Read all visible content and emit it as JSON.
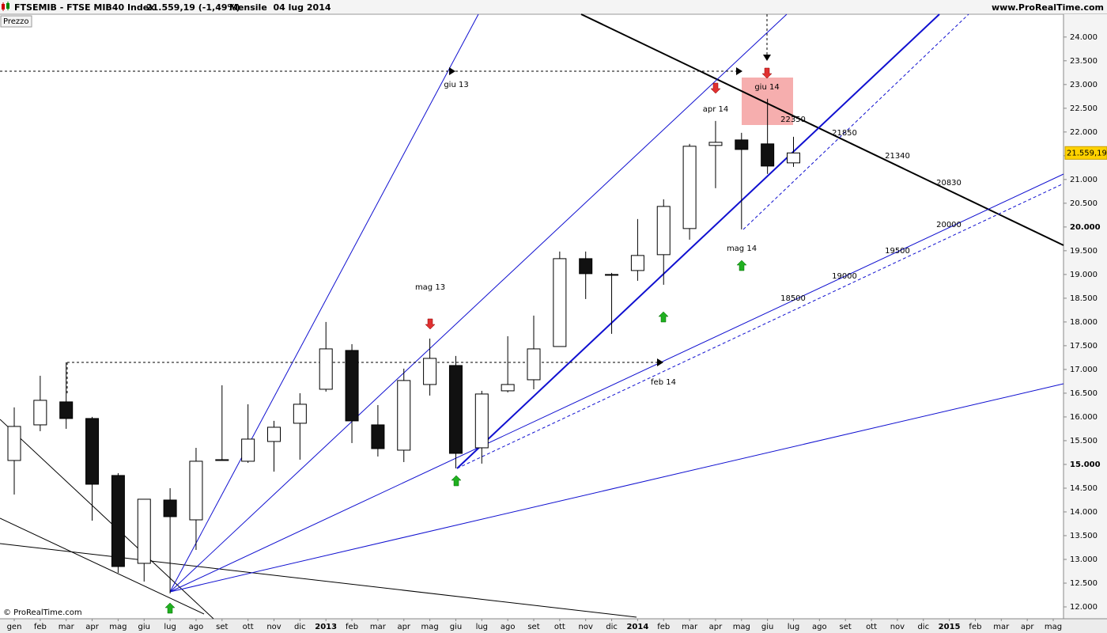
{
  "chart_data": {
    "type": "candlestick",
    "title": "FTSEMIB - FTSE MIB40 Index",
    "quote": "21.559,19 (-1,49%)",
    "period": "Mensile  04 lug 2014",
    "source": "www.ProRealTime.com",
    "panel_label": "Prezzo",
    "copyright": "© ProRealTime.com",
    "last_price_label": "21.559,19",
    "categories": [
      "gen",
      "feb",
      "mar",
      "apr",
      "mag",
      "giu",
      "lug",
      "ago",
      "set",
      "ott",
      "nov",
      "dic",
      "2013",
      "feb",
      "mar",
      "apr",
      "mag",
      "giu",
      "lug",
      "ago",
      "set",
      "ott",
      "nov",
      "dic",
      "2014",
      "feb",
      "mar",
      "apr",
      "mag",
      "giu",
      "lug",
      "ago",
      "set",
      "ott",
      "nov",
      "dic",
      "2015",
      "feb",
      "mar",
      "apr",
      "mag"
    ],
    "open": [
      15083,
      15833,
      16317,
      15967,
      14767,
      12917,
      14250,
      13833,
      15083,
      15067,
      15483,
      15867,
      16583,
      17400,
      15833,
      15300,
      16683,
      17083,
      15350,
      16550,
      16783,
      17483,
      19333,
      19000,
      19083,
      19417,
      19967,
      21717,
      21833,
      21750,
      21350,
      null,
      null,
      null,
      null,
      null,
      null,
      null,
      null,
      null,
      null
    ],
    "high": [
      16200,
      16867,
      17150,
      16000,
      14817,
      14267,
      14500,
      15350,
      16667,
      16267,
      15917,
      16500,
      18000,
      17533,
      16250,
      17017,
      17650,
      17283,
      16550,
      17700,
      18133,
      19483,
      19483,
      19033,
      20167,
      20583,
      21750,
      22233,
      21983,
      22700,
      21900,
      null,
      null,
      null,
      null,
      null,
      null,
      null,
      null,
      null,
      null
    ],
    "low": [
      14367,
      15700,
      15750,
      13817,
      12717,
      12533,
      12283,
      13200,
      15083,
      15033,
      14850,
      15100,
      16533,
      15450,
      15167,
      15050,
      16450,
      14917,
      15017,
      16517,
      16583,
      17483,
      18483,
      17750,
      18867,
      18783,
      19733,
      20817,
      19950,
      21117,
      21267,
      null,
      null,
      null,
      null,
      null,
      null,
      null,
      null,
      null,
      null
    ],
    "close": [
      15800,
      16350,
      15967,
      14583,
      12850,
      14267,
      13900,
      15067,
      15100,
      15533,
      15783,
      16267,
      17433,
      15917,
      15333,
      16767,
      17233,
      15233,
      16483,
      16683,
      17433,
      19333,
      19017,
      18983,
      19400,
      20433,
      21700,
      21783,
      21633,
      21283,
      21559.19,
      null,
      null,
      null,
      null,
      null,
      null,
      null,
      null,
      null,
      null
    ],
    "up_color": "#ffffff",
    "down_color": "#111111",
    "ylim": [
      11750,
      24480
    ],
    "yticks": [
      {
        "value": 12000,
        "label": "12.000"
      },
      {
        "value": 12500,
        "label": "12.500"
      },
      {
        "value": 13000,
        "label": "13.000"
      },
      {
        "value": 13500,
        "label": "13.500"
      },
      {
        "value": 14000,
        "label": "14.000"
      },
      {
        "value": 14500,
        "label": "14.500"
      },
      {
        "value": 15000,
        "label": "15.000"
      },
      {
        "value": 15500,
        "label": "15.500"
      },
      {
        "value": 16000,
        "label": "16.000"
      },
      {
        "value": 16500,
        "label": "16.500"
      },
      {
        "value": 17000,
        "label": "17.000"
      },
      {
        "value": 17500,
        "label": "17.500"
      },
      {
        "value": 18000,
        "label": "18.000"
      },
      {
        "value": 18500,
        "label": "18.500"
      },
      {
        "value": 19000,
        "label": "19.000"
      },
      {
        "value": 19500,
        "label": "19.500"
      },
      {
        "value": 20000,
        "label": "20.000"
      },
      {
        "value": 20500,
        "label": "20.500"
      },
      {
        "value": 21000,
        "label": "21.000"
      },
      {
        "value": 21500,
        "label": "21.500"
      },
      {
        "value": 22000,
        "label": "22.000"
      },
      {
        "value": 22500,
        "label": "22.500"
      },
      {
        "value": 23000,
        "label": "23.000"
      },
      {
        "value": 23500,
        "label": "23.500"
      },
      {
        "value": 24000,
        "label": "24.000"
      }
    ],
    "annotations": [
      "giu 13",
      "mag 13",
      "feb 14",
      "apr 14",
      "giu 14",
      "mag 14",
      22350,
      21850,
      21340,
      20830,
      20000,
      19500,
      19000,
      18500
    ]
  }
}
